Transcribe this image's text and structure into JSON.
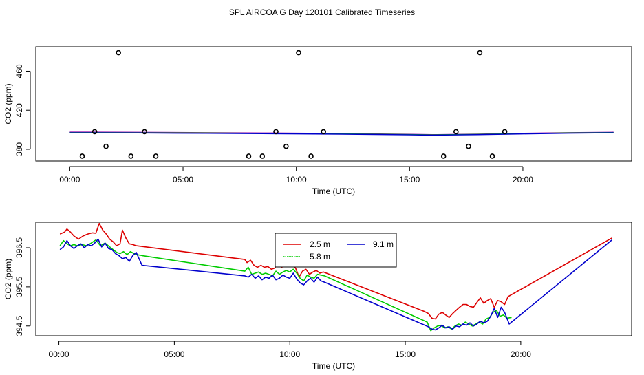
{
  "title": "SPL AIRCOA G  Day 120101  Calibrated Timeseries",
  "colors": {
    "s25": "#dd0000",
    "s58": "#00cc00",
    "s91": "#0000cc",
    "mix": "#9900aa",
    "axis": "#000000"
  },
  "chart_data": [
    {
      "type": "scatter",
      "title": "",
      "xlabel": "Time (UTC)",
      "ylabel": "CO2 (ppm)",
      "xlim": [
        -1.5,
        24.8
      ],
      "ylim": [
        368,
        485
      ],
      "xticks": [
        0,
        5,
        10,
        15,
        20
      ],
      "xticklabels": [
        "00:00",
        "05:00",
        "10:00",
        "15:00",
        "20:00"
      ],
      "yticks": [
        380,
        420,
        460
      ],
      "yticklabels": [
        "380",
        "420",
        "460"
      ],
      "points": {
        "x": [
          0.55,
          1.1,
          1.6,
          2.15,
          2.7,
          3.3,
          3.8,
          7.9,
          8.5,
          9.1,
          9.55,
          10.1,
          10.65,
          11.2,
          16.5,
          17.05,
          17.6,
          18.1,
          18.65,
          19.2
        ],
        "y": [
          373,
          398,
          383,
          479,
          373,
          398,
          373,
          373,
          373,
          398,
          383,
          479,
          373,
          398,
          373,
          398,
          383,
          479,
          373,
          398
        ]
      },
      "series": [
        {
          "name": "2.5 m",
          "x": [
            0,
            3,
            6,
            9,
            12,
            15,
            16,
            18,
            20,
            22,
            24
          ],
          "y": [
            397.5,
            397.3,
            397.0,
            396.6,
            396.1,
            395.3,
            394.9,
            395.5,
            396.3,
            397.0,
            397.4
          ]
        },
        {
          "name": "5.8 m",
          "x": [
            0,
            3,
            6,
            9,
            12,
            15,
            16,
            18,
            20,
            22,
            24
          ],
          "y": [
            397.0,
            396.9,
            396.6,
            396.2,
            395.8,
            395.1,
            394.7,
            395.2,
            396.0,
            396.7,
            397.1
          ]
        },
        {
          "name": "9.1 m",
          "x": [
            0,
            3,
            6,
            9,
            12,
            15,
            16,
            18,
            20,
            22,
            24
          ],
          "y": [
            396.8,
            396.7,
            396.3,
            395.9,
            395.5,
            394.8,
            394.4,
            394.9,
            395.8,
            396.5,
            396.9
          ]
        }
      ]
    },
    {
      "type": "line",
      "title": "",
      "xlabel": "Time (UTC)",
      "ylabel": "CO2 (ppm)",
      "xlim": [
        -1.0,
        24.8
      ],
      "ylim": [
        394.25,
        397.15
      ],
      "xticks": [
        0,
        5,
        10,
        15,
        20
      ],
      "xticklabels": [
        "00:00",
        "05:00",
        "10:00",
        "15:00",
        "20:00"
      ],
      "yticks": [
        394.5,
        395.5,
        396.5
      ],
      "yticklabels": [
        "394.5",
        "395.5",
        "396.5"
      ],
      "legend": {
        "position": "top-center",
        "entries": [
          "2.5 m",
          "5.8 m",
          "9.1 m"
        ]
      },
      "series": [
        {
          "name": "2.5 m",
          "x": [
            0.05,
            0.25,
            0.35,
            0.5,
            0.65,
            0.85,
            1.05,
            1.25,
            1.45,
            1.6,
            1.75,
            1.9,
            2.05,
            2.2,
            2.35,
            2.5,
            2.65,
            2.75,
            2.9,
            3.05,
            3.2,
            3.35,
            8.05,
            8.15,
            8.3,
            8.45,
            8.6,
            8.75,
            8.9,
            9.05,
            9.2,
            9.35,
            9.5,
            9.65,
            9.8,
            9.95,
            10.1,
            10.25,
            10.4,
            10.55,
            10.7,
            10.85,
            11.0,
            11.15,
            11.3,
            11.45,
            15.8,
            16.0,
            16.15,
            16.3,
            16.45,
            16.6,
            16.75,
            16.9,
            17.05,
            17.2,
            17.35,
            17.5,
            17.65,
            17.8,
            17.95,
            18.1,
            18.25,
            18.4,
            18.55,
            18.7,
            18.85,
            19.0,
            19.15,
            19.3,
            19.45,
            23.95
          ],
          "y": [
            396.85,
            396.9,
            396.98,
            396.9,
            396.8,
            396.72,
            396.8,
            396.85,
            396.88,
            396.87,
            397.12,
            396.95,
            396.85,
            396.72,
            396.65,
            396.55,
            396.6,
            396.95,
            396.75,
            396.6,
            396.58,
            396.55,
            396.2,
            396.12,
            396.18,
            396.05,
            396.0,
            396.05,
            396.0,
            396.02,
            395.95,
            395.98,
            396.12,
            396.0,
            396.05,
            396.02,
            396.05,
            395.98,
            395.75,
            395.9,
            395.95,
            395.82,
            395.88,
            395.92,
            395.85,
            395.88,
            394.88,
            394.82,
            394.7,
            394.68,
            394.8,
            394.85,
            394.78,
            394.72,
            394.82,
            394.9,
            394.98,
            395.05,
            395.05,
            395.0,
            394.98,
            395.1,
            395.22,
            395.08,
            395.15,
            395.2,
            394.98,
            395.15,
            395.12,
            395.05,
            395.25,
            396.75
          ]
        },
        {
          "name": "5.8 m",
          "x": [
            0.05,
            0.2,
            0.35,
            0.5,
            0.65,
            0.8,
            1.0,
            1.2,
            1.4,
            1.6,
            1.8,
            2.0,
            2.2,
            2.35,
            2.5,
            2.65,
            2.8,
            2.95,
            3.1,
            3.25,
            3.4,
            3.6,
            8.05,
            8.2,
            8.35,
            8.5,
            8.65,
            8.8,
            8.95,
            9.1,
            9.25,
            9.4,
            9.55,
            9.7,
            9.85,
            10.0,
            10.15,
            10.3,
            10.45,
            10.6,
            10.75,
            10.9,
            11.05,
            11.2,
            11.35,
            11.5,
            15.95,
            16.1,
            16.25,
            16.4,
            16.55,
            16.7,
            16.85,
            17.0,
            17.15,
            17.3,
            17.45,
            17.6,
            17.75,
            17.9,
            18.05,
            18.2,
            18.35,
            18.5,
            18.65,
            18.8,
            18.95,
            19.1,
            19.25,
            19.4,
            19.6
          ],
          "y": [
            396.55,
            396.68,
            396.6,
            396.55,
            396.58,
            396.55,
            396.58,
            396.55,
            396.62,
            396.7,
            396.55,
            396.62,
            396.52,
            396.45,
            396.38,
            396.35,
            396.4,
            396.32,
            396.4,
            396.35,
            396.32,
            396.3,
            395.9,
            396.0,
            395.82,
            395.85,
            395.88,
            395.82,
            395.85,
            395.82,
            395.78,
            395.9,
            395.82,
            395.88,
            395.92,
            395.88,
            395.95,
            395.85,
            395.72,
            395.65,
            395.8,
            395.75,
            395.72,
            395.82,
            395.8,
            395.78,
            394.6,
            394.38,
            394.45,
            394.5,
            394.52,
            394.45,
            394.48,
            394.42,
            394.5,
            394.55,
            394.52,
            394.6,
            394.55,
            394.5,
            394.55,
            394.6,
            394.55,
            394.68,
            394.72,
            394.85,
            394.9,
            394.75,
            394.78,
            394.7,
            394.72
          ]
        },
        {
          "name": "9.1 m",
          "x": [
            0.05,
            0.2,
            0.35,
            0.5,
            0.65,
            0.8,
            0.95,
            1.1,
            1.25,
            1.4,
            1.55,
            1.7,
            1.85,
            2.0,
            2.15,
            2.3,
            2.45,
            2.6,
            2.75,
            2.9,
            3.05,
            3.2,
            3.35,
            3.6,
            8.05,
            8.2,
            8.35,
            8.5,
            8.65,
            8.8,
            8.95,
            9.1,
            9.25,
            9.4,
            9.55,
            9.7,
            9.85,
            10.0,
            10.15,
            10.3,
            10.45,
            10.6,
            10.75,
            10.9,
            11.05,
            11.2,
            11.35,
            11.5,
            16.0,
            16.15,
            16.3,
            16.45,
            16.6,
            16.75,
            16.9,
            17.05,
            17.2,
            17.35,
            17.5,
            17.65,
            17.8,
            17.95,
            18.1,
            18.25,
            18.4,
            18.55,
            18.7,
            18.85,
            19.0,
            19.15,
            19.3,
            19.5,
            23.95
          ],
          "y": [
            396.45,
            396.52,
            396.68,
            396.55,
            396.48,
            396.55,
            396.6,
            396.5,
            396.58,
            396.55,
            396.62,
            396.72,
            396.52,
            396.62,
            396.48,
            396.45,
            396.35,
            396.3,
            396.22,
            396.25,
            396.15,
            396.3,
            396.38,
            396.05,
            395.78,
            395.75,
            395.82,
            395.72,
            395.78,
            395.68,
            395.75,
            395.72,
            395.8,
            395.68,
            395.72,
            395.8,
            395.75,
            395.72,
            395.85,
            395.7,
            395.6,
            395.55,
            395.65,
            395.72,
            395.62,
            395.75,
            395.65,
            395.62,
            394.48,
            394.42,
            394.4,
            394.45,
            394.52,
            394.45,
            394.48,
            394.42,
            394.5,
            394.48,
            394.55,
            394.52,
            394.58,
            394.5,
            394.55,
            394.62,
            394.58,
            394.62,
            394.75,
            394.95,
            394.72,
            394.98,
            394.85,
            394.55,
            396.7
          ]
        }
      ]
    }
  ]
}
